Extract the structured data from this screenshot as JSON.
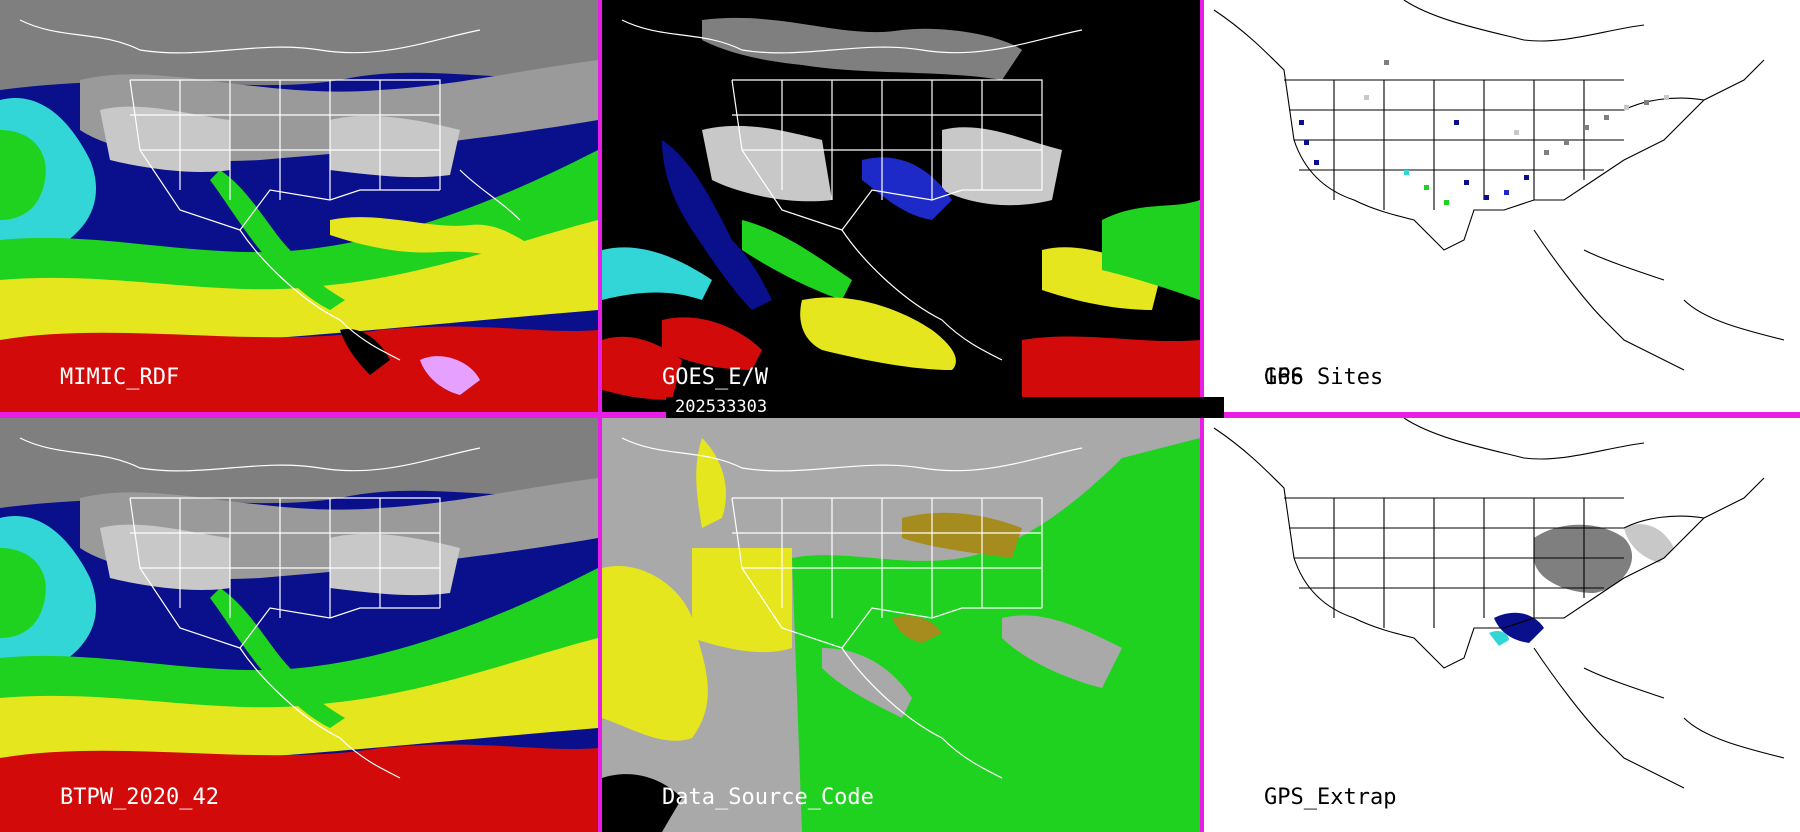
{
  "panels": [
    {
      "id": "p1",
      "label": "MIMIC_RDF",
      "background": "#1a1a1a"
    },
    {
      "id": "p2",
      "label": "GOES_E/W",
      "background": "#000000"
    },
    {
      "id": "p3",
      "label": "GPS Sites",
      "count": "166",
      "background": "#ffffff"
    },
    {
      "id": "p4",
      "label": "BTPW_2020_42",
      "background": "#1a1a1a"
    },
    {
      "id": "p5",
      "label": "Data_Source_Code",
      "background": "#a9a9a9"
    },
    {
      "id": "p6",
      "label": "GPS_Extrap",
      "background": "#ffffff"
    }
  ],
  "timestamp": "202533303",
  "colors": {
    "divider": "#e91ee4",
    "palette": [
      "#7f7f7f",
      "#c8c8c8",
      "#0a0f8c",
      "#1e2ac8",
      "#33d6d6",
      "#8af0f0",
      "#1fd21f",
      "#7fe85a",
      "#e6e61e",
      "#f0c800",
      "#d20a0a",
      "#b00000",
      "#e6a0ff"
    ],
    "data_source": {
      "satellite_a": "#e6e61e",
      "satellite_b": "#1fd21f",
      "mixed": "#a68b1e",
      "none": "#a9a9a9"
    }
  }
}
